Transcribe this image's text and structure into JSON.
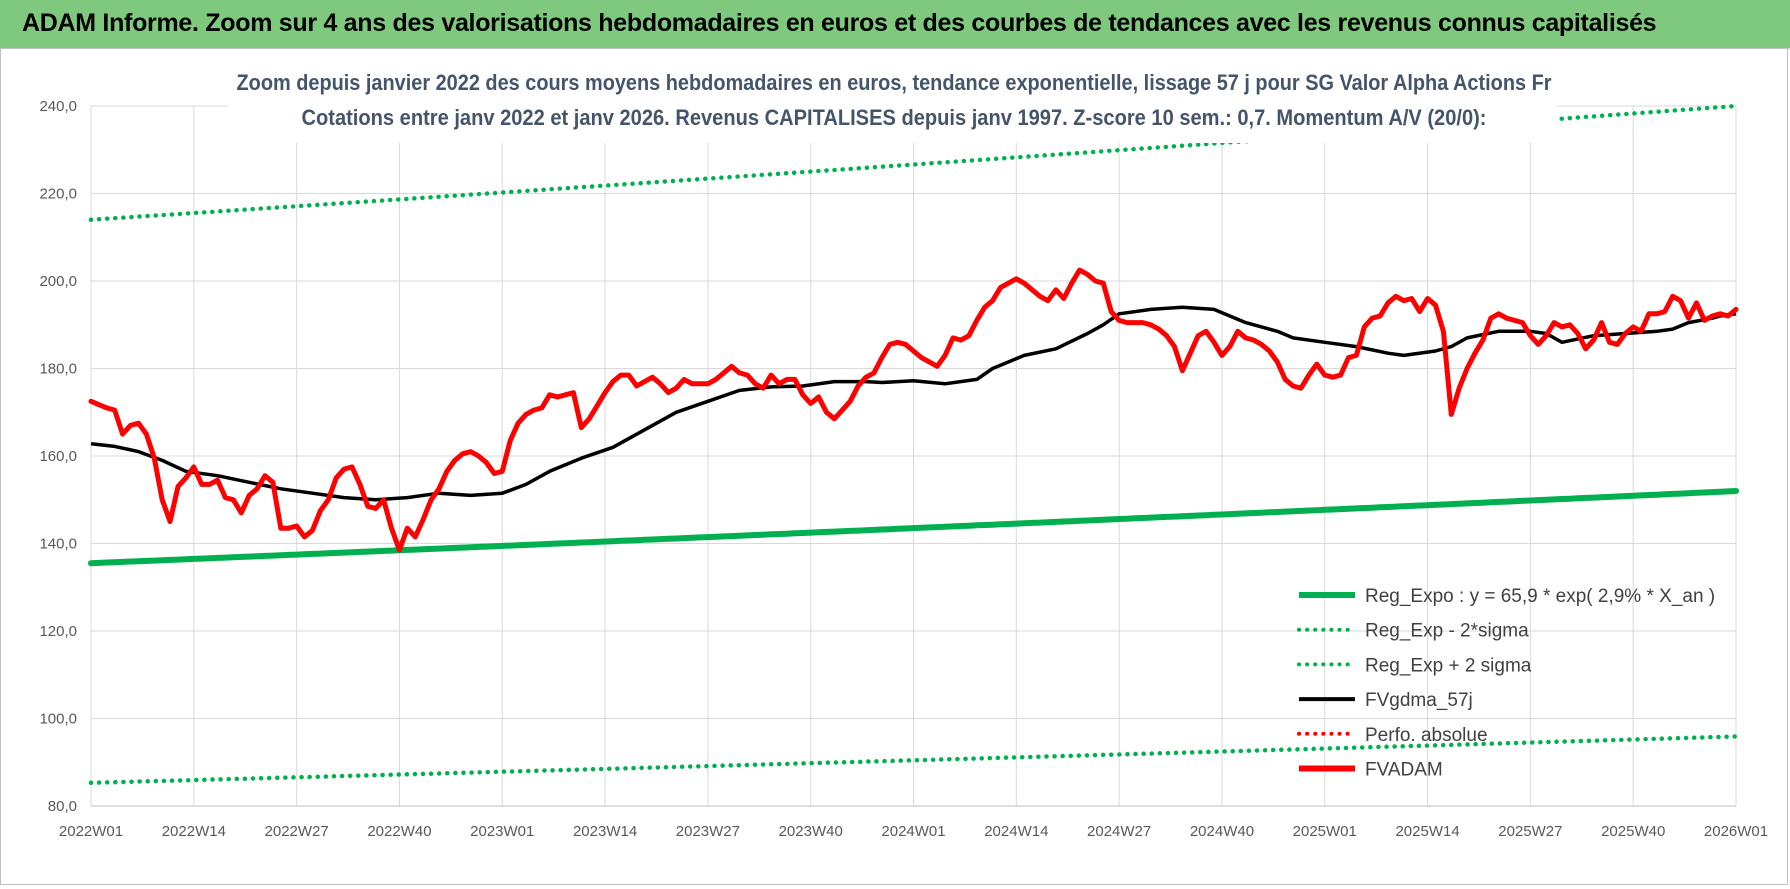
{
  "banner": {
    "title": "ADAM Informe. Zoom sur 4 ans des valorisations hebdomadaires en euros et des courbes de tendances avec les revenus connus capitalisés"
  },
  "colors": {
    "banner_bg": "#7fc97f",
    "reg_expo": "#00b050",
    "sigma_bands": "#00b050",
    "fvgdma": "#000000",
    "perfo": "#ff0000",
    "fvadam": "#ff0000",
    "grid": "#d9d9d9"
  },
  "chart_data": {
    "type": "line",
    "title": [
      "Zoom depuis janvier 2022 des cours moyens hebdomadaires en euros, tendance exponentielle, lissage 57 j pour SG Valor Alpha Actions Fr",
      "Cotations entre janv 2022 et janv 2026. Revenus CAPITALISES depuis janv 1997. Z-score 10 sem.: 0,7. Momentum A/V (20/0):"
    ],
    "xlabel": "",
    "ylabel": "",
    "ylim": [
      80,
      240
    ],
    "y_ticks": [
      "80,0",
      "100,0",
      "120,0",
      "140,0",
      "160,0",
      "180,0",
      "200,0",
      "220,0",
      "240,0"
    ],
    "x_tick_labels": [
      "2022W01",
      "2022W14",
      "2022W27",
      "2022W40",
      "2023W01",
      "2023W14",
      "2023W27",
      "2023W40",
      "2024W01",
      "2024W14",
      "2024W27",
      "2024W40",
      "2025W01",
      "2025W14",
      "2025W27",
      "2025W40",
      "2026W01"
    ],
    "weeks": 209,
    "grid": true,
    "legend_position": "bottom-right",
    "series": [
      {
        "name": "Reg_Expo : y = 65,9 * exp( 2,9% *  X_an )",
        "style": "solid-thick",
        "color": "#00b050",
        "endpoints": [
          [
            0,
            135.5
          ],
          [
            208,
            152.0
          ]
        ]
      },
      {
        "name": "Reg_Exp - 2*sigma",
        "style": "dotted",
        "color": "#00b050",
        "endpoints": [
          [
            0,
            85.3
          ],
          [
            208,
            95.9
          ]
        ]
      },
      {
        "name": "Reg_Exp + 2 sigma",
        "style": "dotted",
        "color": "#00b050",
        "endpoints": [
          [
            0,
            214.0
          ],
          [
            208,
            240.0
          ]
        ]
      },
      {
        "name": "FVgdma_57j",
        "style": "solid",
        "color": "#000000",
        "points": [
          [
            0,
            162.8
          ],
          [
            3,
            162.2
          ],
          [
            6,
            161.0
          ],
          [
            9,
            159.0
          ],
          [
            12,
            156.5
          ],
          [
            16,
            155.5
          ],
          [
            20,
            154.0
          ],
          [
            24,
            152.5
          ],
          [
            28,
            151.5
          ],
          [
            32,
            150.5
          ],
          [
            36,
            150.0
          ],
          [
            40,
            150.5
          ],
          [
            44,
            151.5
          ],
          [
            48,
            151.0
          ],
          [
            52,
            151.5
          ],
          [
            55,
            153.5
          ],
          [
            58,
            156.5
          ],
          [
            62,
            159.5
          ],
          [
            66,
            162.0
          ],
          [
            70,
            166.0
          ],
          [
            74,
            170.0
          ],
          [
            78,
            172.5
          ],
          [
            82,
            175.0
          ],
          [
            86,
            175.8
          ],
          [
            90,
            176.0
          ],
          [
            94,
            177.0
          ],
          [
            98,
            177.0
          ],
          [
            100,
            176.8
          ],
          [
            104,
            177.2
          ],
          [
            108,
            176.5
          ],
          [
            112,
            177.5
          ],
          [
            114,
            180.0
          ],
          [
            118,
            183.0
          ],
          [
            122,
            184.5
          ],
          [
            126,
            188.0
          ],
          [
            128,
            190.0
          ],
          [
            130,
            192.5
          ],
          [
            134,
            193.5
          ],
          [
            138,
            194.0
          ],
          [
            142,
            193.5
          ],
          [
            144,
            192.0
          ],
          [
            146,
            190.5
          ],
          [
            150,
            188.5
          ],
          [
            152,
            187.0
          ],
          [
            156,
            186.0
          ],
          [
            160,
            185.0
          ],
          [
            164,
            183.5
          ],
          [
            166,
            183.0
          ],
          [
            170,
            184.0
          ],
          [
            172,
            185.0
          ],
          [
            174,
            187.0
          ],
          [
            178,
            188.5
          ],
          [
            182,
            188.5
          ],
          [
            184,
            188.0
          ],
          [
            186,
            186.0
          ],
          [
            190,
            187.5
          ],
          [
            194,
            188.0
          ],
          [
            198,
            188.5
          ],
          [
            200,
            189.0
          ],
          [
            202,
            190.5
          ],
          [
            205,
            191.5
          ],
          [
            206,
            192.0
          ],
          [
            208,
            192.5
          ]
        ]
      },
      {
        "name": "Perfo. absolue",
        "style": "dotted",
        "color": "#ff0000",
        "in_legend_only": true
      },
      {
        "name": "FVADAM",
        "style": "solid-thick",
        "color": "#ff0000",
        "points": [
          [
            0,
            172.5
          ],
          [
            2,
            171.0
          ],
          [
            3,
            170.5
          ],
          [
            4,
            165.0
          ],
          [
            5,
            167.0
          ],
          [
            6,
            167.5
          ],
          [
            7,
            165.0
          ],
          [
            8,
            159.5
          ],
          [
            9,
            150.0
          ],
          [
            10,
            145.0
          ],
          [
            11,
            153.0
          ],
          [
            12,
            155.0
          ],
          [
            13,
            157.5
          ],
          [
            14,
            153.5
          ],
          [
            15,
            153.5
          ],
          [
            16,
            154.5
          ],
          [
            17,
            150.5
          ],
          [
            18,
            150.0
          ],
          [
            19,
            147.0
          ],
          [
            20,
            151.0
          ],
          [
            21,
            152.5
          ],
          [
            22,
            155.5
          ],
          [
            23,
            154.0
          ],
          [
            24,
            143.5
          ],
          [
            25,
            143.5
          ],
          [
            26,
            144.0
          ],
          [
            27,
            141.5
          ],
          [
            28,
            143.0
          ],
          [
            29,
            147.5
          ],
          [
            30,
            150.0
          ],
          [
            31,
            155.0
          ],
          [
            32,
            157.0
          ],
          [
            33,
            157.5
          ],
          [
            34,
            153.5
          ],
          [
            35,
            148.5
          ],
          [
            36,
            148.0
          ],
          [
            37,
            150.0
          ],
          [
            38,
            143.5
          ],
          [
            39,
            138.5
          ],
          [
            40,
            143.5
          ],
          [
            41,
            141.5
          ],
          [
            42,
            145.5
          ],
          [
            43,
            150.0
          ],
          [
            44,
            152.5
          ],
          [
            45,
            156.5
          ],
          [
            46,
            159.0
          ],
          [
            47,
            160.5
          ],
          [
            48,
            161.0
          ],
          [
            49,
            160.0
          ],
          [
            50,
            158.5
          ],
          [
            51,
            156.0
          ],
          [
            52,
            156.5
          ],
          [
            53,
            163.5
          ],
          [
            54,
            167.5
          ],
          [
            55,
            169.5
          ],
          [
            56,
            170.5
          ],
          [
            57,
            171.0
          ],
          [
            58,
            174.0
          ],
          [
            59,
            173.5
          ],
          [
            60,
            174.0
          ],
          [
            61,
            174.5
          ],
          [
            62,
            166.5
          ],
          [
            63,
            168.5
          ],
          [
            64,
            171.5
          ],
          [
            65,
            174.5
          ],
          [
            66,
            177.0
          ],
          [
            67,
            178.5
          ],
          [
            68,
            178.5
          ],
          [
            69,
            176.0
          ],
          [
            70,
            177.0
          ],
          [
            71,
            178.0
          ],
          [
            72,
            176.5
          ],
          [
            73,
            174.5
          ],
          [
            74,
            175.5
          ],
          [
            75,
            177.5
          ],
          [
            76,
            176.5
          ],
          [
            77,
            176.5
          ],
          [
            78,
            176.5
          ],
          [
            79,
            177.5
          ],
          [
            80,
            179.0
          ],
          [
            81,
            180.5
          ],
          [
            82,
            179.0
          ],
          [
            83,
            178.5
          ],
          [
            84,
            176.5
          ],
          [
            85,
            175.5
          ],
          [
            86,
            178.5
          ],
          [
            87,
            176.5
          ],
          [
            88,
            177.5
          ],
          [
            89,
            177.5
          ],
          [
            90,
            174.0
          ],
          [
            91,
            172.0
          ],
          [
            92,
            173.5
          ],
          [
            93,
            170.0
          ],
          [
            94,
            168.5
          ],
          [
            95,
            170.5
          ],
          [
            96,
            172.5
          ],
          [
            97,
            176.0
          ],
          [
            98,
            178.0
          ],
          [
            99,
            179.0
          ],
          [
            100,
            182.5
          ],
          [
            101,
            185.5
          ],
          [
            102,
            186.0
          ],
          [
            103,
            185.5
          ],
          [
            104,
            184.0
          ],
          [
            105,
            182.5
          ],
          [
            106,
            181.5
          ],
          [
            107,
            180.5
          ],
          [
            108,
            183.0
          ],
          [
            109,
            187.0
          ],
          [
            110,
            186.5
          ],
          [
            111,
            187.5
          ],
          [
            112,
            191.0
          ],
          [
            113,
            194.0
          ],
          [
            114,
            195.5
          ],
          [
            115,
            198.5
          ],
          [
            116,
            199.5
          ],
          [
            117,
            200.5
          ],
          [
            118,
            199.5
          ],
          [
            119,
            198.0
          ],
          [
            120,
            196.5
          ],
          [
            121,
            195.5
          ],
          [
            122,
            198.0
          ],
          [
            123,
            196.0
          ],
          [
            124,
            199.5
          ],
          [
            125,
            202.5
          ],
          [
            126,
            201.5
          ],
          [
            127,
            200.0
          ],
          [
            128,
            199.5
          ],
          [
            129,
            193.0
          ],
          [
            130,
            191.0
          ],
          [
            131,
            190.5
          ],
          [
            132,
            190.5
          ],
          [
            133,
            190.5
          ],
          [
            134,
            190.0
          ],
          [
            135,
            189.0
          ],
          [
            136,
            187.5
          ],
          [
            137,
            185.0
          ],
          [
            138,
            179.5
          ],
          [
            139,
            183.5
          ],
          [
            140,
            187.5
          ],
          [
            141,
            188.5
          ],
          [
            142,
            186.0
          ],
          [
            143,
            183.0
          ],
          [
            144,
            185.0
          ],
          [
            145,
            188.5
          ],
          [
            146,
            187.0
          ],
          [
            147,
            186.5
          ],
          [
            148,
            185.5
          ],
          [
            149,
            184.0
          ],
          [
            150,
            181.5
          ],
          [
            151,
            177.5
          ],
          [
            152,
            176.0
          ],
          [
            153,
            175.5
          ],
          [
            154,
            178.5
          ],
          [
            155,
            181.0
          ],
          [
            156,
            178.5
          ],
          [
            157,
            178.0
          ],
          [
            158,
            178.5
          ],
          [
            159,
            182.5
          ],
          [
            160,
            183.0
          ],
          [
            161,
            189.5
          ],
          [
            162,
            191.5
          ],
          [
            163,
            192.0
          ],
          [
            164,
            195.0
          ],
          [
            165,
            196.5
          ],
          [
            166,
            195.5
          ],
          [
            167,
            196.0
          ],
          [
            168,
            193.0
          ],
          [
            169,
            196.0
          ],
          [
            170,
            194.5
          ],
          [
            171,
            188.5
          ],
          [
            172,
            169.5
          ],
          [
            173,
            175.5
          ],
          [
            174,
            180.0
          ],
          [
            175,
            183.5
          ],
          [
            176,
            186.5
          ],
          [
            177,
            191.5
          ],
          [
            178,
            192.5
          ],
          [
            179,
            191.5
          ],
          [
            180,
            191.0
          ],
          [
            181,
            190.5
          ],
          [
            182,
            187.5
          ],
          [
            183,
            185.5
          ],
          [
            184,
            187.5
          ],
          [
            185,
            190.5
          ],
          [
            186,
            189.5
          ],
          [
            187,
            190.0
          ],
          [
            188,
            188.0
          ],
          [
            189,
            184.5
          ],
          [
            190,
            186.5
          ],
          [
            191,
            190.5
          ],
          [
            192,
            186.0
          ],
          [
            193,
            185.5
          ],
          [
            194,
            188.0
          ],
          [
            195,
            189.5
          ],
          [
            196,
            188.5
          ],
          [
            197,
            192.5
          ],
          [
            198,
            192.5
          ],
          [
            199,
            193.0
          ],
          [
            200,
            196.5
          ],
          [
            201,
            195.5
          ],
          [
            202,
            191.5
          ],
          [
            203,
            195.0
          ],
          [
            204,
            191.0
          ],
          [
            205,
            192.0
          ],
          [
            206,
            192.5
          ],
          [
            207,
            192.0
          ],
          [
            208,
            193.5
          ]
        ]
      }
    ]
  }
}
